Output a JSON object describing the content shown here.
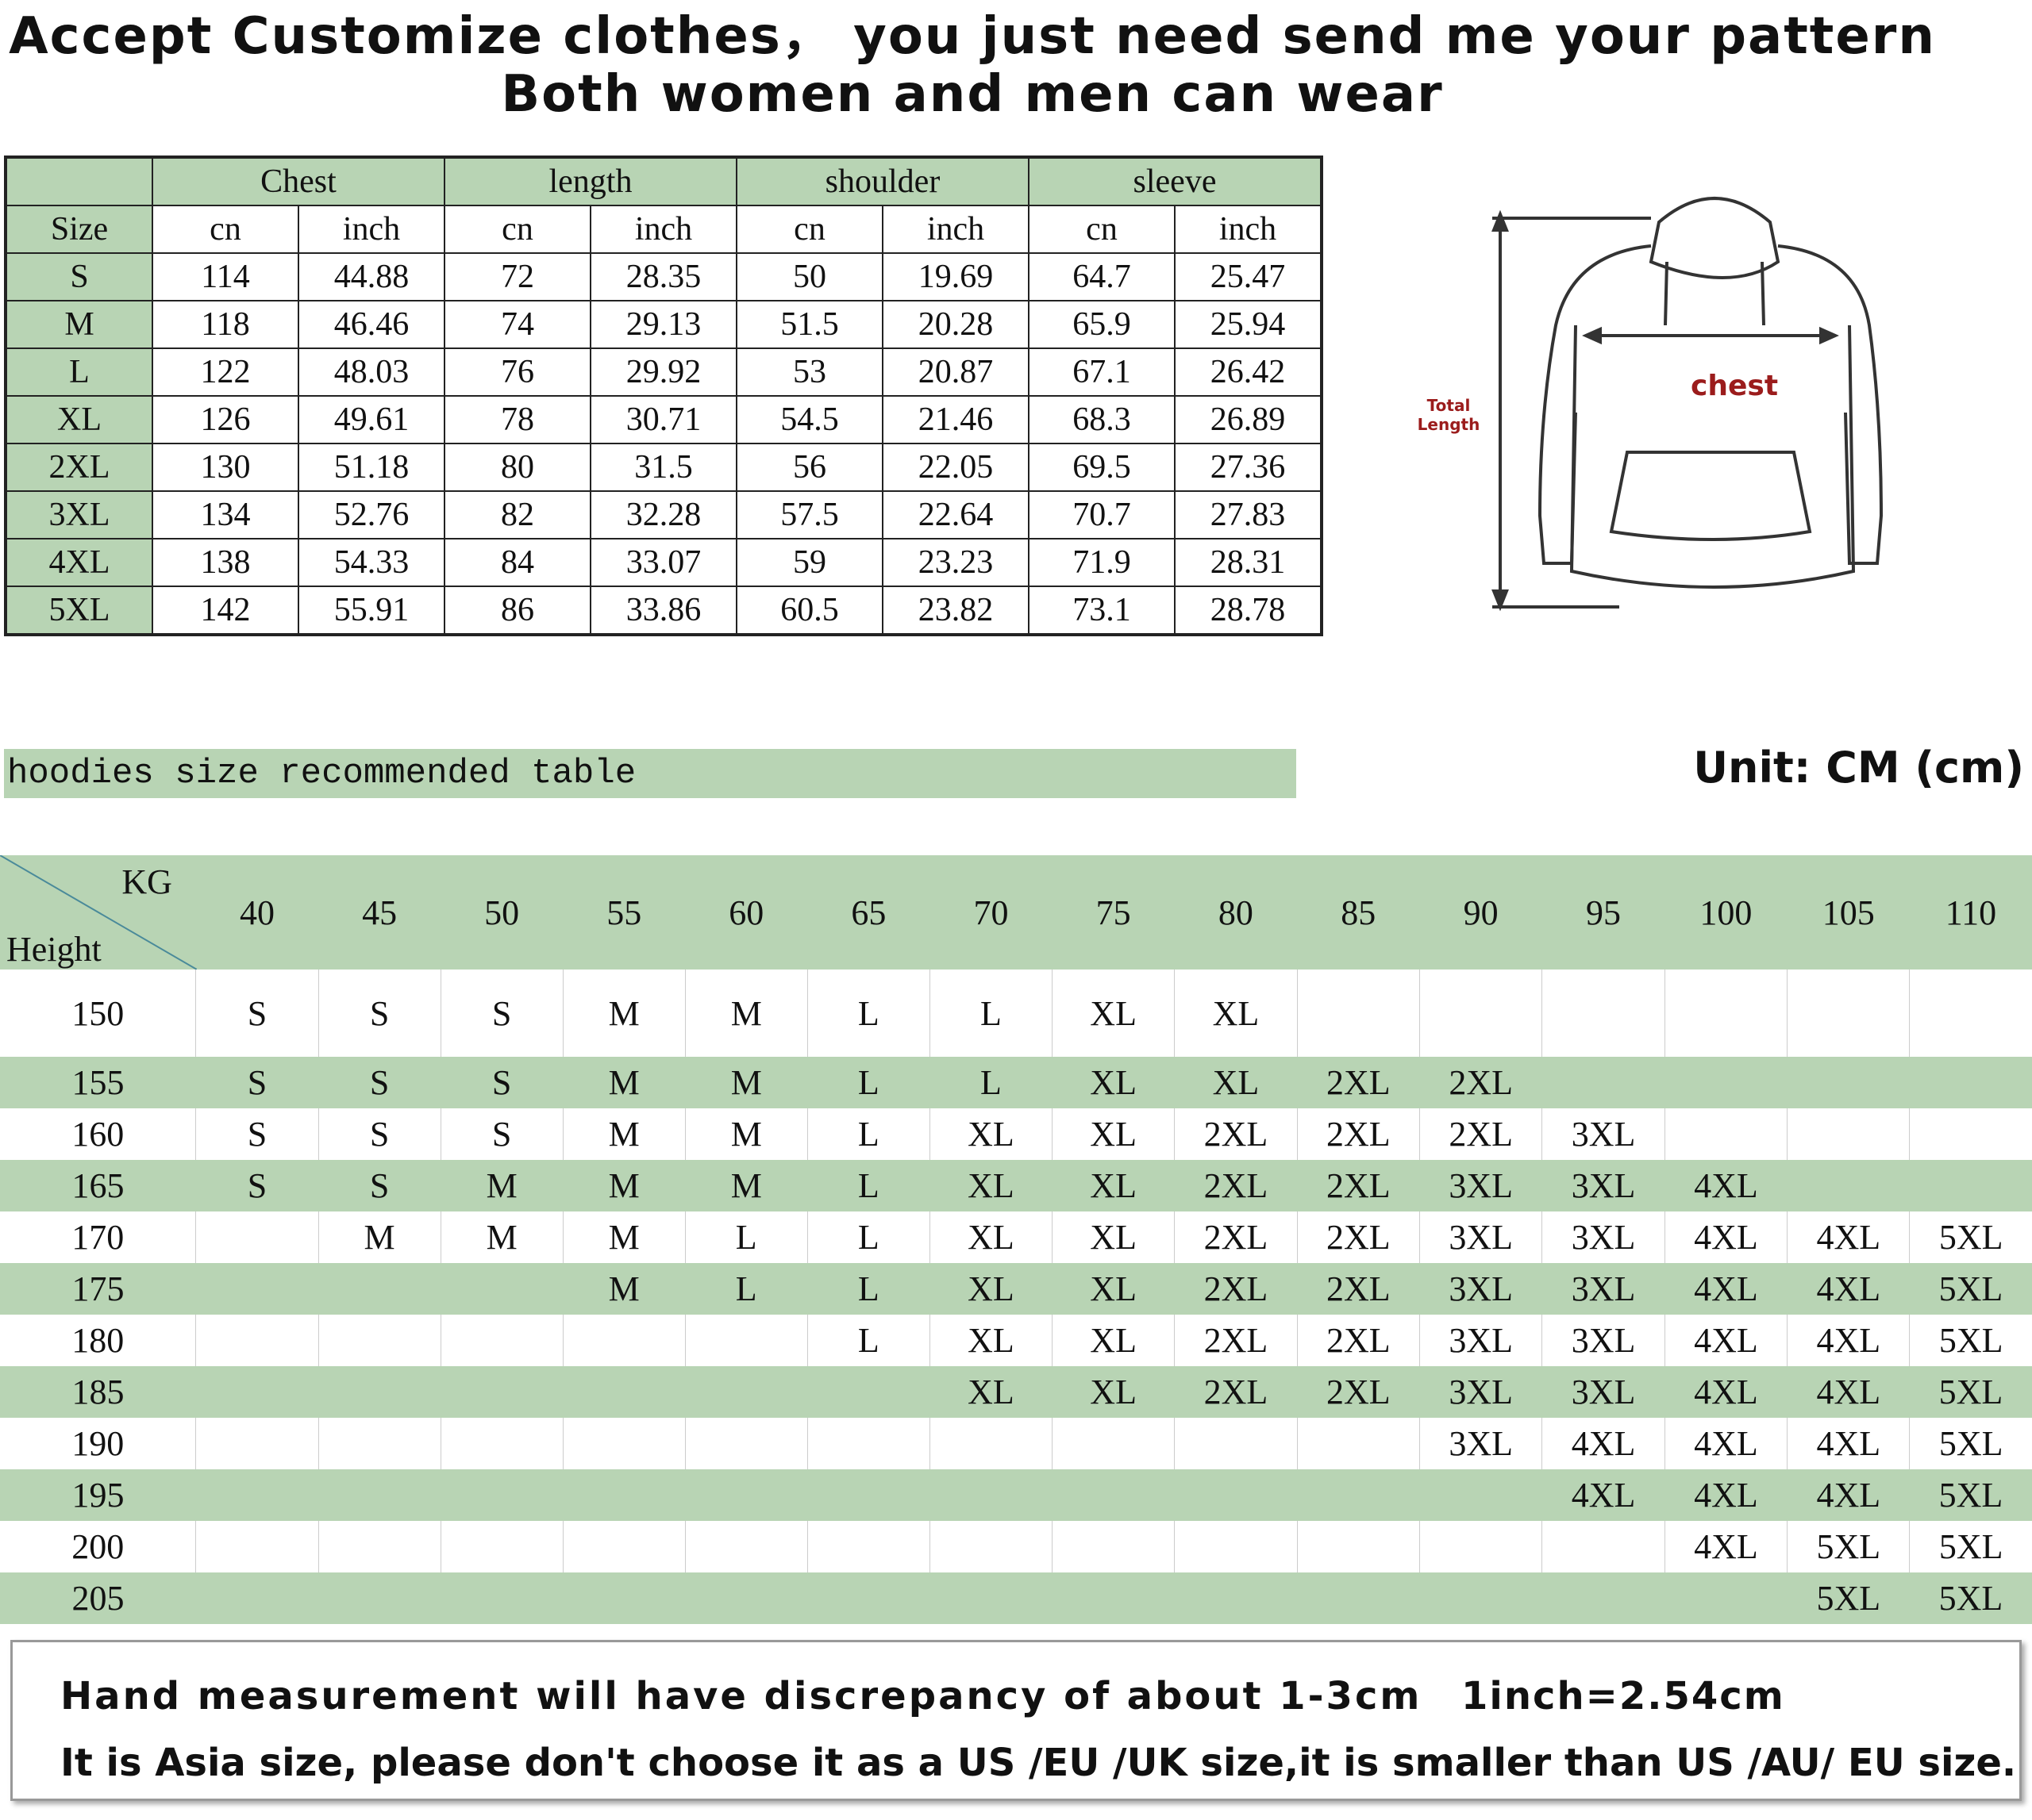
{
  "title_line1": "Accept Customize clothes， you just need send me your pattern",
  "title_line2": "Both women and men can wear",
  "size_table": {
    "groups": [
      "Chest",
      "length",
      "shoulder",
      "sleeve"
    ],
    "size_label": "Size",
    "units": [
      "cn",
      "inch",
      "cn",
      "inch",
      "cn",
      "inch",
      "cn",
      "inch"
    ],
    "rows": [
      [
        "S",
        "114",
        "44.88",
        "72",
        "28.35",
        "50",
        "19.69",
        "64.7",
        "25.47"
      ],
      [
        "M",
        "118",
        "46.46",
        "74",
        "29.13",
        "51.5",
        "20.28",
        "65.9",
        "25.94"
      ],
      [
        "L",
        "122",
        "48.03",
        "76",
        "29.92",
        "53",
        "20.87",
        "67.1",
        "26.42"
      ],
      [
        "XL",
        "126",
        "49.61",
        "78",
        "30.71",
        "54.5",
        "21.46",
        "68.3",
        "26.89"
      ],
      [
        "2XL",
        "130",
        "51.18",
        "80",
        "31.5",
        "56",
        "22.05",
        "69.5",
        "27.36"
      ],
      [
        "3XL",
        "134",
        "52.76",
        "82",
        "32.28",
        "57.5",
        "22.64",
        "70.7",
        "27.83"
      ],
      [
        "4XL",
        "138",
        "54.33",
        "84",
        "33.07",
        "59",
        "23.23",
        "71.9",
        "28.31"
      ],
      [
        "5XL",
        "142",
        "55.91",
        "86",
        "33.86",
        "60.5",
        "23.82",
        "73.1",
        "28.78"
      ]
    ]
  },
  "diagram": {
    "chest_label": "chest",
    "length_label_1": "Total",
    "length_label_2": "Length",
    "chest_color": "#9b1c1c"
  },
  "recommend_title": "hoodies size recommended table",
  "unit_label": "Unit: CM (cm)",
  "recommend_table": {
    "kg_label": "KG",
    "height_label": "Height",
    "weights": [
      "40",
      "45",
      "50",
      "55",
      "60",
      "65",
      "70",
      "75",
      "80",
      "85",
      "90",
      "95",
      "100",
      "105",
      "110"
    ],
    "rows": [
      [
        "150",
        "S",
        "S",
        "S",
        "M",
        "M",
        "L",
        "L",
        "XL",
        "XL",
        "",
        "",
        "",
        "",
        "",
        ""
      ],
      [
        "155",
        "S",
        "S",
        "S",
        "M",
        "M",
        "L",
        "L",
        "XL",
        "XL",
        "2XL",
        "2XL",
        "",
        "",
        "",
        ""
      ],
      [
        "160",
        "S",
        "S",
        "S",
        "M",
        "M",
        "L",
        "XL",
        "XL",
        "2XL",
        "2XL",
        "2XL",
        "3XL",
        "",
        "",
        ""
      ],
      [
        "165",
        "S",
        "S",
        "M",
        "M",
        "M",
        "L",
        "XL",
        "XL",
        "2XL",
        "2XL",
        "3XL",
        "3XL",
        "4XL",
        "",
        ""
      ],
      [
        "170",
        "",
        "M",
        "M",
        "M",
        "L",
        "L",
        "XL",
        "XL",
        "2XL",
        "2XL",
        "3XL",
        "3XL",
        "4XL",
        "4XL",
        "5XL"
      ],
      [
        "175",
        "",
        "",
        "",
        "M",
        "L",
        "L",
        "XL",
        "XL",
        "2XL",
        "2XL",
        "3XL",
        "3XL",
        "4XL",
        "4XL",
        "5XL"
      ],
      [
        "180",
        "",
        "",
        "",
        "",
        "",
        "L",
        "XL",
        "XL",
        "2XL",
        "2XL",
        "3XL",
        "3XL",
        "4XL",
        "4XL",
        "5XL"
      ],
      [
        "185",
        "",
        "",
        "",
        "",
        "",
        "",
        "XL",
        "XL",
        "2XL",
        "2XL",
        "3XL",
        "3XL",
        "4XL",
        "4XL",
        "5XL"
      ],
      [
        "190",
        "",
        "",
        "",
        "",
        "",
        "",
        "",
        "",
        "",
        "",
        "3XL",
        "4XL",
        "4XL",
        "4XL",
        "5XL"
      ],
      [
        "195",
        "",
        "",
        "",
        "",
        "",
        "",
        "",
        "",
        "",
        "",
        "",
        "4XL",
        "4XL",
        "4XL",
        "5XL"
      ],
      [
        "200",
        "",
        "",
        "",
        "",
        "",
        "",
        "",
        "",
        "",
        "",
        "",
        "",
        "4XL",
        "5XL",
        "5XL"
      ],
      [
        "205",
        "",
        "",
        "",
        "",
        "",
        "",
        "",
        "",
        "",
        "",
        "",
        "",
        "",
        "5XL",
        "5XL"
      ]
    ]
  },
  "notes": {
    "line1": "Hand measurement will have discrepancy of about 1-3cm",
    "conversion": "1inch=2.54cm",
    "line2": "It is Asia size, please don't choose it as a US /EU /UK size,it is smaller than US /AU/ EU size."
  },
  "colors": {
    "header_green": "#b8d4b4"
  }
}
